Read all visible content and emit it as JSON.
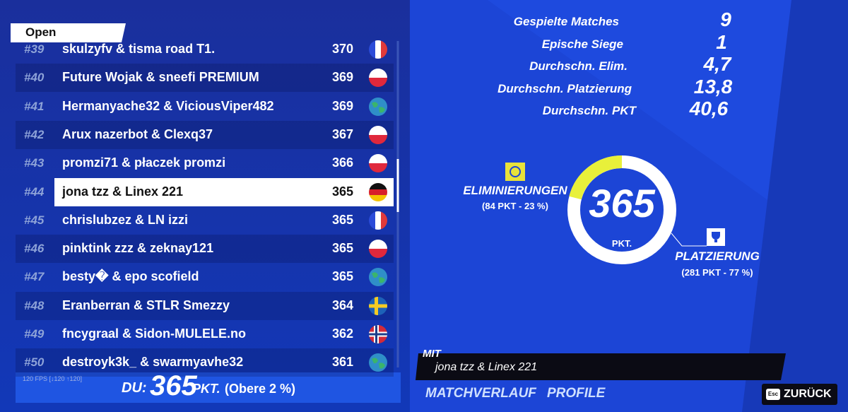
{
  "tab": "Open",
  "leaderboard": {
    "rows": [
      {
        "rank": "#39",
        "name": "skulzyfv & tisma road T1.",
        "points": 370
      },
      {
        "rank": "#40",
        "name": "Future Wojak & sneefi PREMIUM",
        "points": 369
      },
      {
        "rank": "#41",
        "name": "Hermanyache32 & ViciousViper482",
        "points": 369
      },
      {
        "rank": "#42",
        "name": "Arux nazerbot & Clexq37",
        "points": 367
      },
      {
        "rank": "#43",
        "name": "promzi71 & płaczek promzi",
        "points": 366
      },
      {
        "rank": "#44",
        "name": "jona tzz & Linex 221",
        "points": 365
      },
      {
        "rank": "#45",
        "name": "chrislubzez & LN izzi",
        "points": 365
      },
      {
        "rank": "#46",
        "name": "pinktink zzz & zeknay121",
        "points": 365
      },
      {
        "rank": "#47",
        "name": "besty� & epo scofield",
        "points": 365
      },
      {
        "rank": "#48",
        "name": "Eranberran & STLR Smezzy",
        "points": 364
      },
      {
        "rank": "#49",
        "name": "fncygraal & Sidon-MULELE.no",
        "points": 362
      },
      {
        "rank": "#50",
        "name": "destroyk3k_ & swarmyavhe32",
        "points": 361
      }
    ]
  },
  "fps": "120 FPS [↓120 ↑120]",
  "footer": {
    "you_label": "DU:",
    "points": 365,
    "unit": "PKT.",
    "rank_note": "(Obere 2 %)"
  },
  "stats": [
    {
      "label": "Gespielte Matches",
      "value": "9"
    },
    {
      "label": "Epische Siege",
      "value": "1"
    },
    {
      "label": "Durchschn. Elim.",
      "value": "4,7"
    },
    {
      "label": "Durchschn. Platzierung",
      "value": "13,8"
    },
    {
      "label": "Durchschn. PKT",
      "value": "40,6"
    }
  ],
  "score": {
    "total": 365,
    "unit": "PKT.",
    "eliminations": {
      "label": "ELIMINIERUNGEN",
      "detail": "(84 PKT - 23 %)"
    },
    "placement": {
      "label": "PLATZIERUNG",
      "detail": "(281 PKT - 77 %)"
    }
  },
  "team": {
    "label": "MIT",
    "names": "jona tzz & Linex 221"
  },
  "nav": {
    "history": "MATCHVERLAUF",
    "profile": "PROFILE",
    "back_key": "Esc",
    "back": "ZURÜCK"
  }
}
